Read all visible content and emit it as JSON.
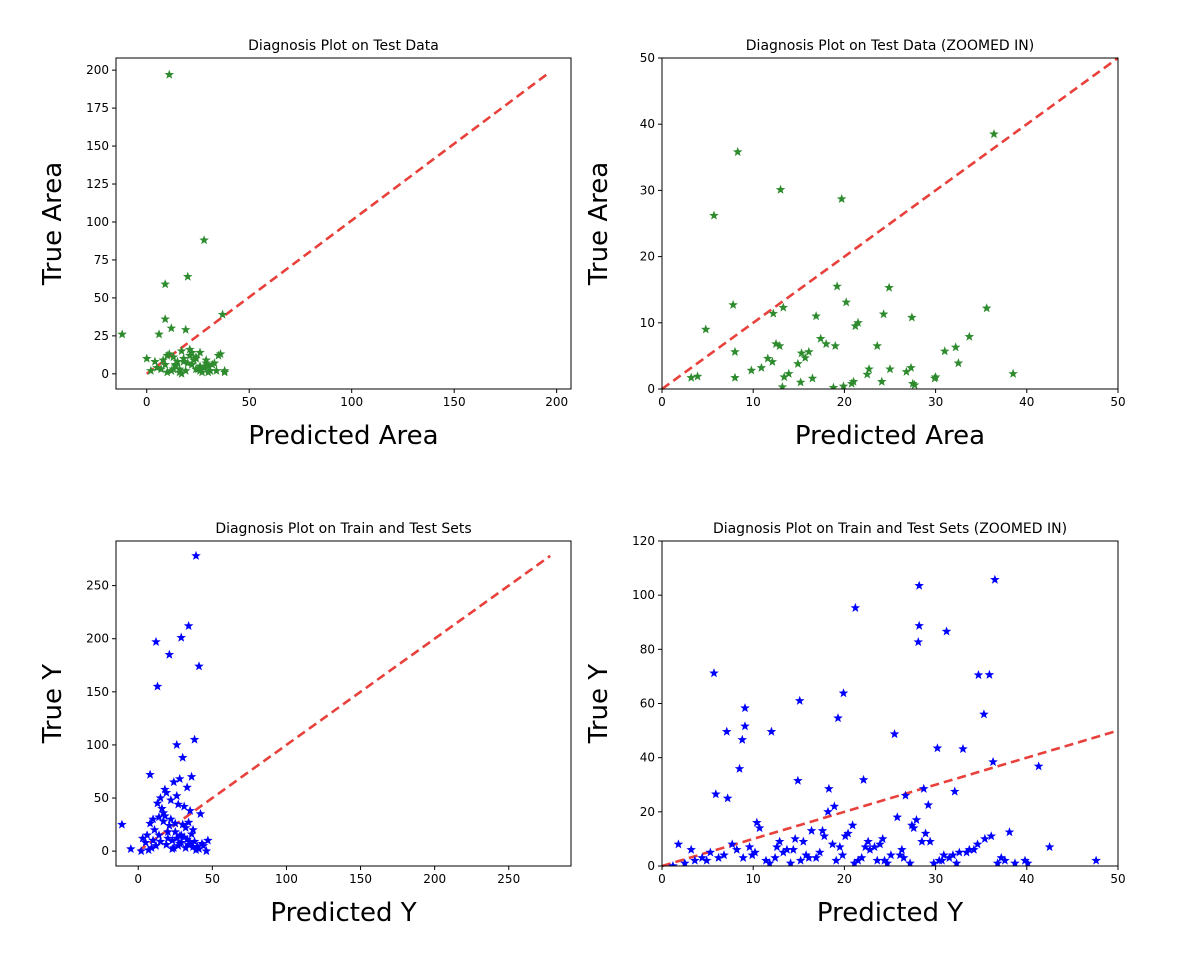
{
  "chart_data": [
    {
      "type": "scatter",
      "title": "Diagnosis Plot on Test Data",
      "xlabel": "Predicted Area",
      "ylabel": "True Area",
      "xlim": [
        -15,
        207
      ],
      "ylim": [
        -10,
        208
      ],
      "xticks": [
        0,
        50,
        100,
        150,
        200
      ],
      "yticks": [
        0,
        25,
        50,
        75,
        100,
        125,
        150,
        175,
        200
      ],
      "marker_color": "#2e8b2e",
      "reference_color": "#e8413c",
      "reference_line": [
        [
          0,
          0
        ],
        [
          195,
          197
        ]
      ],
      "x": [
        11,
        -12,
        9,
        28,
        20,
        37,
        12,
        9,
        19,
        14,
        6,
        0,
        8,
        10,
        14,
        18,
        21,
        24,
        26,
        29,
        31,
        35,
        2,
        5,
        13,
        15,
        16,
        22,
        24,
        27,
        30,
        33,
        38,
        11,
        17,
        19,
        23,
        26,
        18,
        20,
        25,
        12,
        16,
        21,
        28,
        32,
        36,
        7,
        10,
        29,
        34,
        4,
        22,
        13,
        9,
        30,
        24,
        17,
        26,
        38
      ],
      "y": [
        197,
        26,
        59,
        88,
        64,
        39,
        30,
        36,
        29,
        6,
        26,
        10,
        9,
        12,
        5,
        8,
        12,
        3,
        14,
        7,
        2,
        12,
        2,
        4,
        11,
        8,
        3,
        6,
        10,
        1,
        5,
        7,
        2,
        13,
        15,
        2,
        9,
        5,
        10,
        7,
        3,
        2,
        1,
        16,
        4,
        6,
        13,
        3,
        1,
        9,
        2,
        8,
        14,
        3,
        6,
        1,
        11,
        0,
        2,
        1
      ]
    },
    {
      "type": "scatter",
      "title": "Diagnosis Plot on Test Data (ZOOMED IN)",
      "xlabel": "Predicted Area",
      "ylabel": "True Area",
      "xlim": [
        0,
        50
      ],
      "ylim": [
        0,
        50
      ],
      "xticks": [
        0,
        10,
        20,
        30,
        40,
        50
      ],
      "yticks": [
        0,
        10,
        20,
        30,
        40,
        50
      ],
      "marker_color": "#2e8b2e",
      "reference_color": "#e8413c",
      "reference_line": [
        [
          0,
          0
        ],
        [
          50,
          50
        ]
      ],
      "x": [
        8.3,
        5.7,
        13,
        19.7,
        36.4,
        7.8,
        12.2,
        13.3,
        4.8,
        8,
        16.9,
        19.2,
        20.2,
        21.5,
        24.9,
        24.3,
        27.4,
        35.6,
        32.2,
        33.7,
        31,
        30,
        27.3,
        26.8,
        27.5,
        25,
        24.1,
        23.6,
        22.5,
        21,
        20.8,
        19,
        18.8,
        18,
        17.4,
        16.1,
        15.7,
        15.3,
        14.9,
        13.9,
        13.4,
        13.2,
        12.5,
        12.1,
        11.6,
        9.8,
        8,
        3.2,
        3.9,
        38.5,
        32.5,
        29.9,
        27.7,
        22.7,
        19.9,
        16.5,
        15.2,
        12.9,
        10.9,
        21.2
      ],
      "y": [
        35.8,
        26.2,
        30.1,
        28.7,
        38.5,
        12.7,
        11.4,
        12.3,
        9,
        5.6,
        11,
        15.5,
        13.1,
        10,
        15.3,
        11.3,
        10.8,
        12.2,
        6.3,
        7.9,
        5.7,
        1.8,
        3.2,
        2.6,
        0.8,
        3,
        1.1,
        6.5,
        2.2,
        1.1,
        0.8,
        6.5,
        0.2,
        6.8,
        7.6,
        5.6,
        4.7,
        5.4,
        3.8,
        2.3,
        1.8,
        0.3,
        6.8,
        4.1,
        4.6,
        2.8,
        1.7,
        1.7,
        1.9,
        2.3,
        3.9,
        1.6,
        0.6,
        3,
        0.4,
        1.6,
        1,
        6.5,
        3.2,
        9.5
      ]
    },
    {
      "type": "scatter",
      "title": "Diagnosis Plot on Train and Test Sets",
      "xlabel": "Predicted Y",
      "ylabel": "True Y",
      "xlim": [
        -15,
        292
      ],
      "ylim": [
        -14,
        292
      ],
      "xticks": [
        0,
        50,
        100,
        150,
        200,
        250
      ],
      "yticks": [
        0,
        50,
        100,
        150,
        200,
        250
      ],
      "marker_color": "#0000ff",
      "reference_color": "#e8413c",
      "reference_line": [
        [
          0,
          0
        ],
        [
          278,
          278
        ]
      ],
      "x": [
        39,
        34,
        29,
        12,
        21,
        41,
        13,
        -11,
        38,
        26,
        30,
        8,
        36,
        28,
        24,
        33,
        19,
        15,
        22,
        27,
        31,
        35,
        42,
        47,
        5,
        10,
        17,
        25,
        32,
        37,
        44,
        -5,
        3,
        14,
        20,
        23,
        29,
        34,
        40,
        9,
        16,
        18,
        26,
        38,
        43,
        7,
        12,
        21,
        28,
        33,
        36,
        2,
        11,
        19,
        24,
        30,
        41,
        6,
        15,
        22,
        27,
        35,
        39,
        46,
        13,
        17,
        25,
        31,
        37,
        8,
        20,
        23,
        28,
        32,
        18,
        26,
        14,
        34,
        10,
        29
      ],
      "y": [
        278,
        212,
        201,
        197,
        185,
        174,
        155,
        25,
        105,
        100,
        88,
        72,
        70,
        68,
        65,
        60,
        55,
        50,
        48,
        44,
        42,
        38,
        35,
        10,
        8,
        30,
        28,
        26,
        22,
        20,
        5,
        2,
        12,
        15,
        18,
        10,
        8,
        6,
        4,
        3,
        40,
        33,
        12,
        9,
        7,
        1,
        5,
        24,
        14,
        11,
        16,
        0,
        20,
        6,
        3,
        25,
        2,
        15,
        9,
        30,
        5,
        8,
        1,
        0,
        45,
        36,
        18,
        13,
        4,
        26,
        12,
        2,
        7,
        3,
        58,
        52,
        32,
        27,
        10,
        15
      ]
    },
    {
      "type": "scatter",
      "title": "Diagnosis Plot on Train and Test Sets (ZOOMED IN)",
      "xlabel": "Predicted Y",
      "ylabel": "True Y",
      "xlim": [
        0,
        50
      ],
      "ylim": [
        0,
        120
      ],
      "xticks": [
        0,
        10,
        20,
        30,
        40,
        50
      ],
      "yticks": [
        0,
        20,
        40,
        60,
        80,
        100,
        120
      ],
      "marker_color": "#0000ff",
      "reference_color": "#e8413c",
      "reference_line": [
        [
          0,
          0
        ],
        [
          50,
          50
        ]
      ],
      "x": [
        28.2,
        36.5,
        21.2,
        31.2,
        28.2,
        28.1,
        5.7,
        34.7,
        35.9,
        15.1,
        19.9,
        9.1,
        19.3,
        35.3,
        12,
        9.1,
        7.1,
        8.8,
        25.5,
        30.2,
        33,
        36.3,
        41.3,
        8.5,
        5.9,
        7.2,
        14.9,
        18.3,
        22.1,
        28.7,
        26.7,
        29.2,
        32.1,
        38.1,
        42.5,
        47.6,
        1.8,
        3.2,
        4.4,
        10.2,
        12.9,
        15.8,
        16.4,
        17.8,
        19.5,
        21.9,
        24.2,
        26.3,
        27.4,
        30.9,
        34.6,
        37.2,
        39.8,
        2.5,
        6.8,
        9.6,
        11.4,
        13.3,
        14.6,
        16.9,
        18.7,
        20.4,
        22.8,
        23.6,
        25.1,
        27.9,
        29.8,
        31.5,
        33.7,
        36.1,
        4.9,
        8.2,
        10.7,
        12.4,
        14.1,
        15.5,
        17.3,
        19.1,
        20.9,
        22.3,
        24.7,
        26.1,
        28.5,
        30.4,
        32.6,
        35.4,
        38.7,
        3.6,
        7.7,
        9.9,
        11.8,
        13.7,
        16.1,
        18.2,
        20.1,
        21.5,
        23.3,
        25.8,
        27.2,
        29.4,
        31.9,
        34.2,
        37.6,
        40.1,
        1.2,
        5.3,
        8.9,
        12.6,
        15.2,
        17.6,
        19.8,
        21.1,
        23.9,
        26.5,
        28.9,
        30.7,
        33.4,
        36.8,
        6.2,
        10.4,
        14.4,
        18.9,
        22.6,
        24.4,
        27.6,
        32.3
      ],
      "y": [
        103.5,
        105.7,
        95.3,
        86.6,
        88.7,
        82.7,
        71.2,
        70.5,
        70.6,
        61,
        63.8,
        58.3,
        54.6,
        56,
        49.6,
        51.6,
        49.6,
        46.6,
        48.7,
        43.5,
        43.2,
        38.4,
        36.8,
        35.9,
        26.5,
        25,
        31.5,
        28.5,
        31.8,
        28.5,
        26,
        22.5,
        27.5,
        12.5,
        7,
        2,
        8,
        6,
        3,
        5,
        9,
        4,
        13,
        11,
        7,
        3,
        10,
        6,
        15,
        4,
        8,
        3,
        2,
        1,
        4,
        7,
        2,
        5,
        10,
        3,
        8,
        12,
        6,
        2,
        4,
        17,
        1,
        3,
        6,
        11,
        2,
        6,
        14,
        3,
        1,
        9,
        5,
        2,
        15,
        7,
        1,
        4,
        9,
        2,
        5,
        10,
        1,
        2,
        8,
        4,
        1,
        6,
        3,
        20,
        11,
        2,
        7,
        18,
        1,
        9,
        4,
        6,
        2,
        1,
        0,
        5,
        3,
        7,
        2,
        13,
        4,
        1,
        8,
        3,
        12,
        2,
        5,
        1,
        3,
        16,
        6,
        22,
        9,
        2,
        14,
        1
      ]
    }
  ]
}
